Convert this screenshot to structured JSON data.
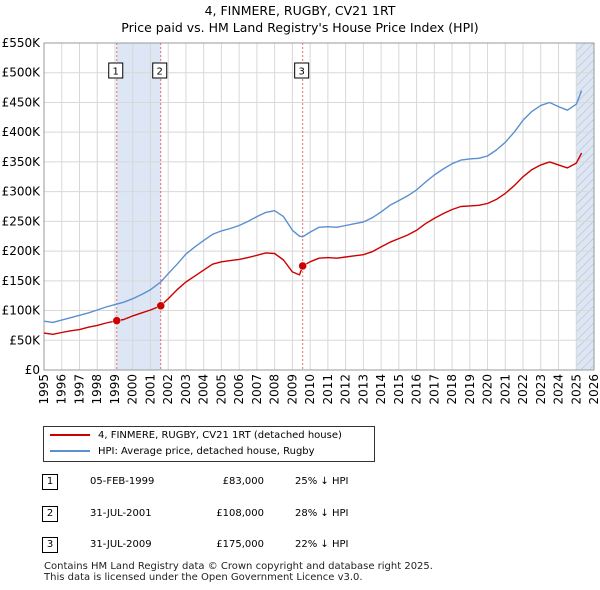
{
  "title_line1": "4, FINMERE, RUGBY, CV21 1RT",
  "title_line2": "Price paid vs. HM Land Registry's House Price Index (HPI)",
  "chart_data": {
    "type": "line",
    "ylim": [
      0,
      550000
    ],
    "xlim": [
      1995,
      2026
    ],
    "y_ticks": [
      0,
      50000,
      100000,
      150000,
      200000,
      250000,
      300000,
      350000,
      400000,
      450000,
      500000,
      550000
    ],
    "y_tick_labels": [
      "£0",
      "£50K",
      "£100K",
      "£150K",
      "£200K",
      "£250K",
      "£300K",
      "£350K",
      "£400K",
      "£450K",
      "£500K",
      "£550K"
    ],
    "x_tick_labels": [
      "1995",
      "1996",
      "1997",
      "1998",
      "1999",
      "2000",
      "2001",
      "2002",
      "2003",
      "2004",
      "2005",
      "2006",
      "2007",
      "2008",
      "2009",
      "2010",
      "2011",
      "2012",
      "2013",
      "2014",
      "2015",
      "2016",
      "2017",
      "2018",
      "2019",
      "2020",
      "2021",
      "2022",
      "2023",
      "2024",
      "2025",
      "2026"
    ],
    "grid": true,
    "colors": {
      "price_paid": "#cc0000",
      "hpi": "#5b8fd0",
      "shade": "#dce6f5",
      "vline": "#e07070"
    },
    "shaded_ranges": [
      [
        1999.1,
        2001.58
      ],
      [
        2025.0,
        2026.0
      ]
    ],
    "series": [
      {
        "name": "4, FINMERE, RUGBY, CV21 1RT (detached house)",
        "points": [
          [
            1995.0,
            62000
          ],
          [
            1995.5,
            60000
          ],
          [
            1996.0,
            63000
          ],
          [
            1996.5,
            66000
          ],
          [
            1997.0,
            68000
          ],
          [
            1997.5,
            72000
          ],
          [
            1998.0,
            75000
          ],
          [
            1998.5,
            79000
          ],
          [
            1999.1,
            83000
          ],
          [
            1999.5,
            85000
          ],
          [
            2000.0,
            91000
          ],
          [
            2000.5,
            96000
          ],
          [
            2001.0,
            101000
          ],
          [
            2001.58,
            108000
          ],
          [
            2002.0,
            120000
          ],
          [
            2002.5,
            135000
          ],
          [
            2003.0,
            148000
          ],
          [
            2003.5,
            158000
          ],
          [
            2004.0,
            168000
          ],
          [
            2004.5,
            178000
          ],
          [
            2005.0,
            182000
          ],
          [
            2005.5,
            184000
          ],
          [
            2006.0,
            186000
          ],
          [
            2006.5,
            189000
          ],
          [
            2007.0,
            193000
          ],
          [
            2007.5,
            197000
          ],
          [
            2008.0,
            196000
          ],
          [
            2008.5,
            185000
          ],
          [
            2009.0,
            165000
          ],
          [
            2009.4,
            160000
          ],
          [
            2009.58,
            175000
          ],
          [
            2010.0,
            182000
          ],
          [
            2010.5,
            188000
          ],
          [
            2011.0,
            189000
          ],
          [
            2011.5,
            188000
          ],
          [
            2012.0,
            190000
          ],
          [
            2012.5,
            192000
          ],
          [
            2013.0,
            194000
          ],
          [
            2013.5,
            199000
          ],
          [
            2014.0,
            207000
          ],
          [
            2014.5,
            215000
          ],
          [
            2015.0,
            221000
          ],
          [
            2015.5,
            227000
          ],
          [
            2016.0,
            235000
          ],
          [
            2016.5,
            246000
          ],
          [
            2017.0,
            255000
          ],
          [
            2017.5,
            263000
          ],
          [
            2018.0,
            270000
          ],
          [
            2018.5,
            275000
          ],
          [
            2019.0,
            276000
          ],
          [
            2019.5,
            277000
          ],
          [
            2020.0,
            280000
          ],
          [
            2020.5,
            287000
          ],
          [
            2021.0,
            297000
          ],
          [
            2021.5,
            310000
          ],
          [
            2022.0,
            325000
          ],
          [
            2022.5,
            337000
          ],
          [
            2023.0,
            345000
          ],
          [
            2023.5,
            350000
          ],
          [
            2024.0,
            345000
          ],
          [
            2024.5,
            340000
          ],
          [
            2025.0,
            348000
          ],
          [
            2025.3,
            365000
          ]
        ]
      },
      {
        "name": "HPI: Average price, detached house, Rugby",
        "points": [
          [
            1995.0,
            82000
          ],
          [
            1995.5,
            80000
          ],
          [
            1996.0,
            84000
          ],
          [
            1996.5,
            88000
          ],
          [
            1997.0,
            92000
          ],
          [
            1997.5,
            96000
          ],
          [
            1998.0,
            101000
          ],
          [
            1998.5,
            106000
          ],
          [
            1999.0,
            110000
          ],
          [
            1999.5,
            114000
          ],
          [
            2000.0,
            120000
          ],
          [
            2000.5,
            127000
          ],
          [
            2001.0,
            135000
          ],
          [
            2001.58,
            148000
          ],
          [
            2002.0,
            162000
          ],
          [
            2002.5,
            178000
          ],
          [
            2003.0,
            195000
          ],
          [
            2003.5,
            207000
          ],
          [
            2004.0,
            218000
          ],
          [
            2004.5,
            228000
          ],
          [
            2005.0,
            234000
          ],
          [
            2005.5,
            238000
          ],
          [
            2006.0,
            243000
          ],
          [
            2006.5,
            250000
          ],
          [
            2007.0,
            258000
          ],
          [
            2007.5,
            265000
          ],
          [
            2008.0,
            268000
          ],
          [
            2008.5,
            258000
          ],
          [
            2009.0,
            235000
          ],
          [
            2009.4,
            225000
          ],
          [
            2009.58,
            224000
          ],
          [
            2010.0,
            232000
          ],
          [
            2010.5,
            240000
          ],
          [
            2011.0,
            241000
          ],
          [
            2011.5,
            240000
          ],
          [
            2012.0,
            243000
          ],
          [
            2012.5,
            246000
          ],
          [
            2013.0,
            249000
          ],
          [
            2013.5,
            256000
          ],
          [
            2014.0,
            266000
          ],
          [
            2014.5,
            277000
          ],
          [
            2015.0,
            285000
          ],
          [
            2015.5,
            293000
          ],
          [
            2016.0,
            303000
          ],
          [
            2016.5,
            316000
          ],
          [
            2017.0,
            328000
          ],
          [
            2017.5,
            338000
          ],
          [
            2018.0,
            347000
          ],
          [
            2018.5,
            353000
          ],
          [
            2019.0,
            355000
          ],
          [
            2019.5,
            356000
          ],
          [
            2020.0,
            360000
          ],
          [
            2020.5,
            370000
          ],
          [
            2021.0,
            383000
          ],
          [
            2021.5,
            400000
          ],
          [
            2022.0,
            420000
          ],
          [
            2022.5,
            435000
          ],
          [
            2023.0,
            445000
          ],
          [
            2023.5,
            450000
          ],
          [
            2024.0,
            443000
          ],
          [
            2024.5,
            437000
          ],
          [
            2025.0,
            447000
          ],
          [
            2025.3,
            470000
          ]
        ]
      }
    ],
    "sales": [
      {
        "label": "1",
        "x": 1999.1,
        "y": 83000
      },
      {
        "label": "2",
        "x": 2001.58,
        "y": 108000
      },
      {
        "label": "3",
        "x": 2009.58,
        "y": 175000
      }
    ]
  },
  "legend": {
    "price_paid_label": "4, FINMERE, RUGBY, CV21 1RT (detached house)",
    "hpi_label": "HPI: Average price, detached house, Rugby"
  },
  "transactions": [
    {
      "num": "1",
      "date": "05-FEB-1999",
      "price": "£83,000",
      "hpi": "25% ↓ HPI"
    },
    {
      "num": "2",
      "date": "31-JUL-2001",
      "price": "£108,000",
      "hpi": "28% ↓ HPI"
    },
    {
      "num": "3",
      "date": "31-JUL-2009",
      "price": "£175,000",
      "hpi": "22% ↓ HPI"
    }
  ],
  "footer": {
    "line1": "Contains HM Land Registry data © Crown copyright and database right 2025.",
    "line2": "This data is licensed under the Open Government Licence v3.0."
  }
}
